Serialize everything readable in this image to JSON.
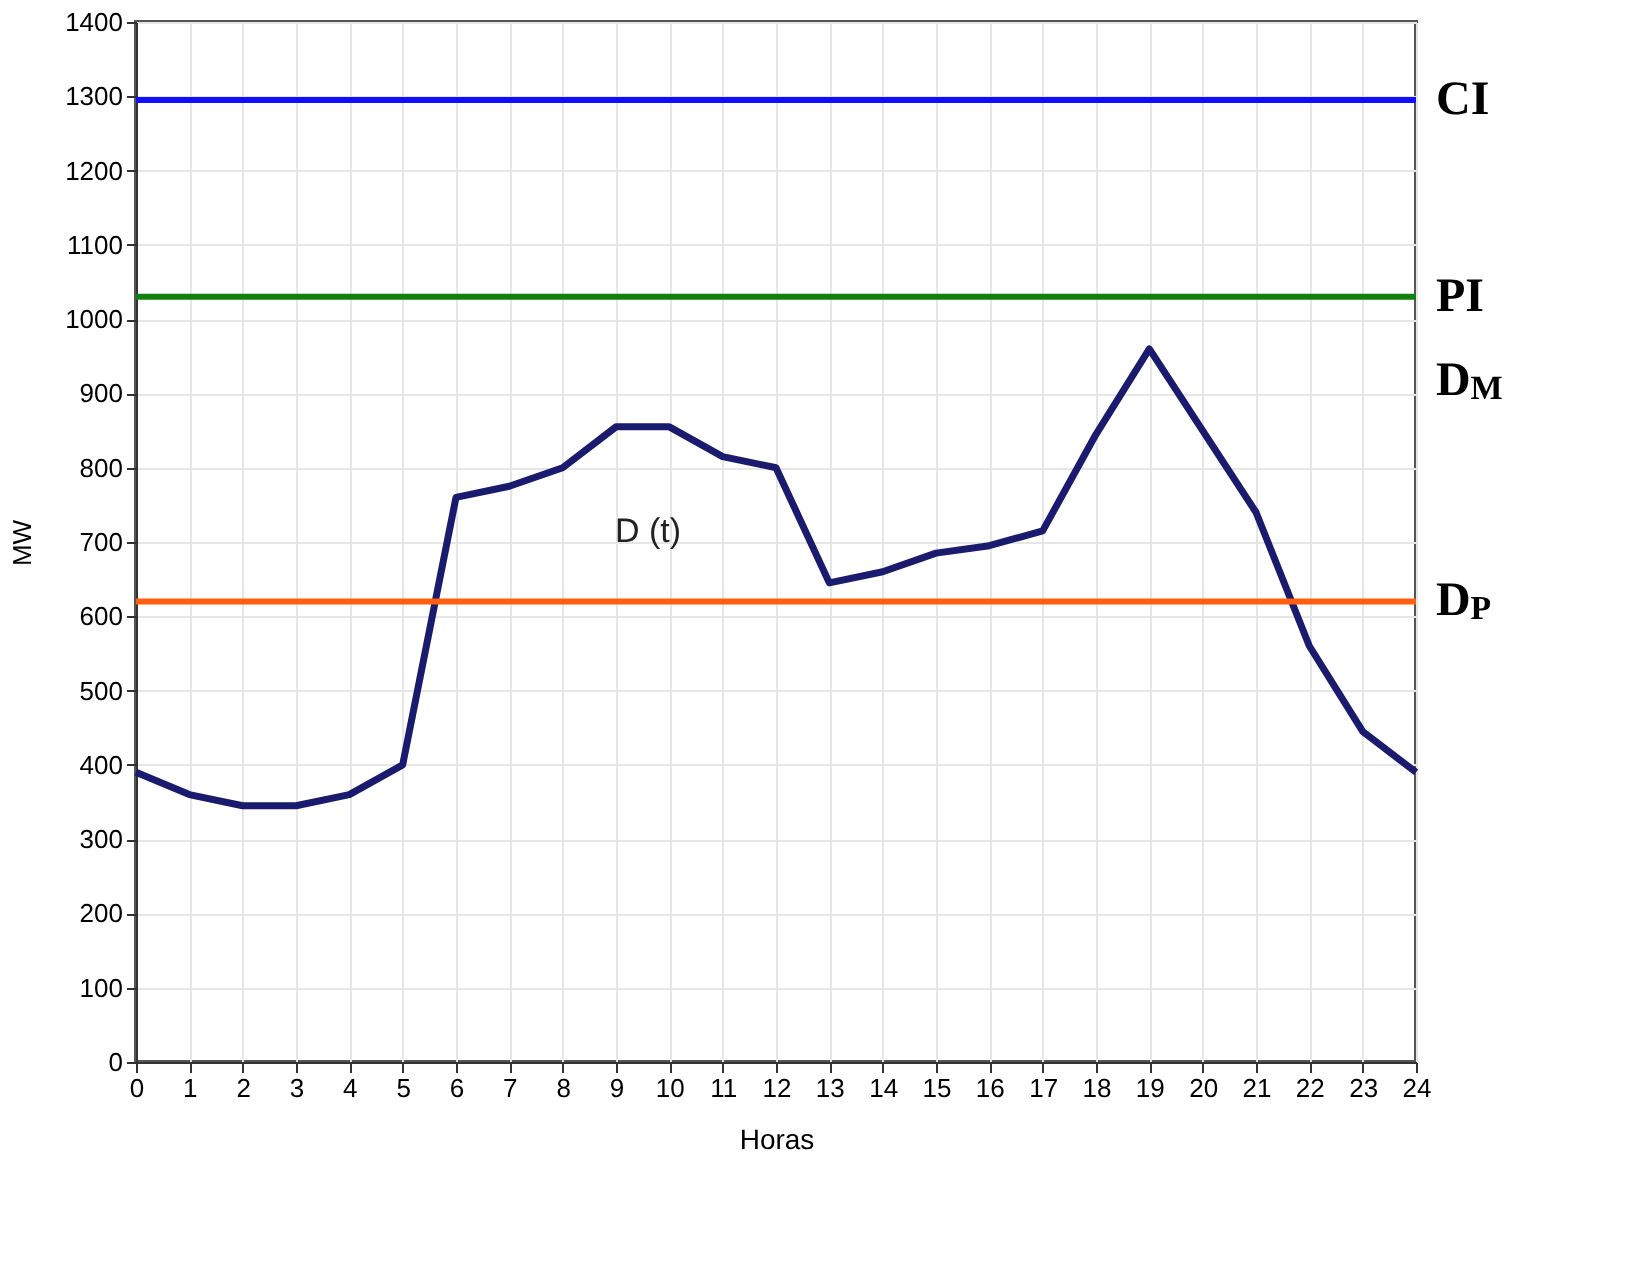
{
  "chart_data": {
    "type": "line",
    "xlabel": "Horas",
    "ylabel": "MW",
    "x": [
      0,
      1,
      2,
      3,
      4,
      5,
      6,
      7,
      8,
      9,
      10,
      11,
      12,
      13,
      14,
      15,
      16,
      17,
      18,
      19,
      20,
      21,
      22,
      23,
      24
    ],
    "series": [
      {
        "color": "#1a1a6e",
        "values": [
          390,
          360,
          345,
          345,
          360,
          400,
          760,
          775,
          800,
          855,
          855,
          815,
          800,
          645,
          660,
          685,
          695,
          715,
          845,
          960,
          850,
          740,
          560,
          445,
          390
        ]
      }
    ],
    "xlim": [
      0,
      24
    ],
    "xticks": [
      0,
      1,
      2,
      3,
      4,
      5,
      6,
      7,
      8,
      9,
      10,
      11,
      12,
      13,
      14,
      15,
      16,
      17,
      18,
      19,
      20,
      21,
      22,
      23,
      24
    ],
    "ylim": [
      0,
      1400
    ],
    "yticks": [
      0,
      100,
      200,
      300,
      400,
      500,
      600,
      700,
      800,
      900,
      1000,
      1100,
      1200,
      1300,
      1400
    ],
    "grid": true,
    "marker": "none",
    "line_style": "solid",
    "ref_lines": [
      {
        "axis": "y",
        "value": 1295,
        "label": "CI",
        "color": "#1010ff"
      },
      {
        "axis": "y",
        "value": 1030,
        "label": "PI",
        "color": "#108010"
      },
      {
        "axis": "y",
        "value": 620,
        "label": "D$_{P}$",
        "color": "#ff6010"
      }
    ],
    "annotations": [
      "D (t)",
      "D$_{M}$"
    ]
  }
}
